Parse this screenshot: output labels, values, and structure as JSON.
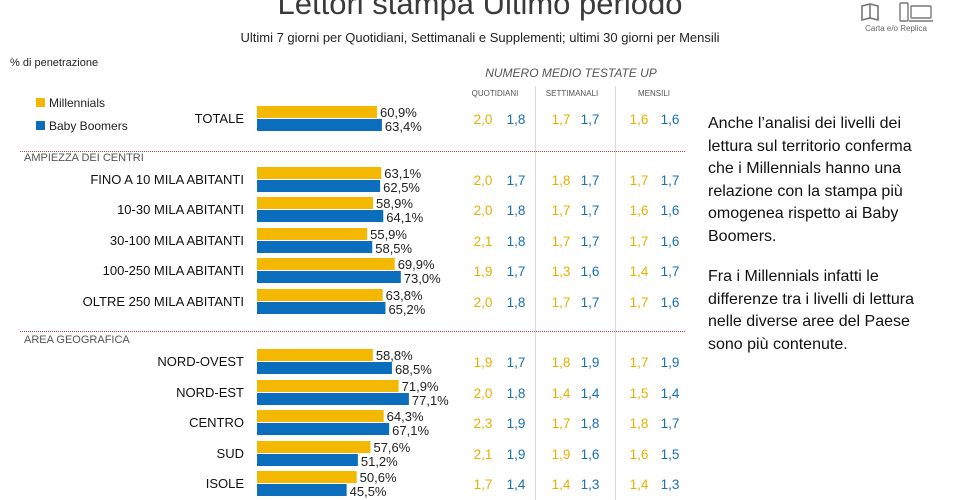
{
  "title": "Lettori stampa Ultimo periodo",
  "subtitle": "Ultimi 7 giorni per Quotidiani, Settimanali e Supplementi; ultimi 30 giorni per Mensili",
  "logo_caption": "Carta e/o Replica",
  "penetration_label": "% di penetrazione",
  "numero_header": "NUMERO MEDIO TESTATE UP",
  "subheaders": [
    "QUOTIDIANI",
    "SETTIMANALI",
    "MENSILI"
  ],
  "colors": {
    "millennials": "#F5B800",
    "boomers": "#0A6EBD",
    "millennials_text": "#E8B000",
    "boomers_text": "#1A6FB0",
    "separator": "#C04040"
  },
  "sections": [
    "AMPIEZZA DEI CENTRI",
    "AREA GEOGRAFICA"
  ],
  "note": [
    "Anche l’analisi dei livelli dei lettura sul territorio conferma che i Millennials hanno una relazione con la stampa più omogenea rispetto ai Baby Boomers.",
    "Fra i Millennials infatti le differenze tra i livelli di lettura nelle diverse aree del Paese sono più contenute."
  ],
  "chart_data": {
    "type": "bar",
    "orientation": "horizontal",
    "title": "Lettori stampa Ultimo periodo",
    "categories": [
      "TOTALE",
      "FINO A 10 MILA ABITANTI",
      "10-30 MILA ABITANTI",
      "30-100 MILA ABITANTI",
      "100-250 MILA ABITANTI",
      "OLTRE 250 MILA ABITANTI",
      "NORD-OVEST",
      "NORD-EST",
      "CENTRO",
      "SUD",
      "ISOLE"
    ],
    "series": [
      {
        "name": "Millennials",
        "values": [
          60.9,
          63.1,
          58.9,
          55.9,
          69.9,
          63.8,
          58.8,
          71.9,
          64.3,
          57.6,
          50.6
        ],
        "labels": [
          "60,9%",
          "63,1%",
          "58,9%",
          "55,9%",
          "69,9%",
          "63,8%",
          "58,8%",
          "71,9%",
          "64,3%",
          "57,6%",
          "50,6%"
        ]
      },
      {
        "name": "Baby Boomers",
        "values": [
          63.4,
          62.5,
          64.1,
          58.5,
          73.0,
          65.2,
          68.5,
          77.1,
          67.1,
          51.2,
          45.5
        ],
        "labels": [
          "63,4%",
          "62,5%",
          "64,1%",
          "58,5%",
          "73,0%",
          "65,2%",
          "68,5%",
          "77,1%",
          "67,1%",
          "51,2%",
          "45,5%"
        ]
      }
    ],
    "numero_medio": [
      [
        "2,0",
        "1,8",
        "1,7",
        "1,7",
        "1,6",
        "1,6"
      ],
      [
        "2,0",
        "1,7",
        "1,8",
        "1,7",
        "1,7",
        "1,7"
      ],
      [
        "2,0",
        "1,8",
        "1,7",
        "1,7",
        "1,6",
        "1,6"
      ],
      [
        "2,1",
        "1,8",
        "1,7",
        "1,7",
        "1,7",
        "1,6"
      ],
      [
        "1,9",
        "1,7",
        "1,3",
        "1,6",
        "1,4",
        "1,7"
      ],
      [
        "2,0",
        "1,8",
        "1,7",
        "1,7",
        "1,7",
        "1,6"
      ],
      [
        "1,9",
        "1,7",
        "1,8",
        "1,9",
        "1,7",
        "1,9"
      ],
      [
        "2,0",
        "1,8",
        "1,4",
        "1,4",
        "1,5",
        "1,4"
      ],
      [
        "2,3",
        "1,9",
        "1,7",
        "1,8",
        "1,8",
        "1,7"
      ],
      [
        "2,1",
        "1,9",
        "1,9",
        "1,6",
        "1,6",
        "1,5"
      ],
      [
        "1,7",
        "1,4",
        "1,4",
        "1,3",
        "1,4",
        "1,3"
      ]
    ],
    "numero_medio_columns": [
      "QUOTIDIANI",
      "SETTIMANALI",
      "MENSILI"
    ],
    "legend": [
      "Millennials",
      "Baby Boomers"
    ],
    "legend_position": "top-left",
    "value_unit": "%"
  }
}
